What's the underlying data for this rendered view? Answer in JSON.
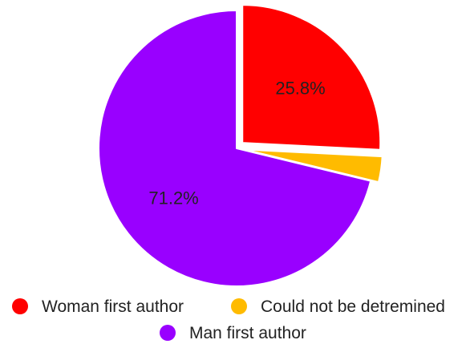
{
  "chart_data": {
    "type": "pie",
    "slices": [
      {
        "name": "Woman first author",
        "value": 25.8,
        "label": "25.8%",
        "color": "#ff0000",
        "exploded": true
      },
      {
        "name": "Could not be detremined",
        "value": 3.0,
        "label": "",
        "color": "#ffbb00",
        "exploded": true
      },
      {
        "name": "Man first author",
        "value": 71.2,
        "label": "71.2%",
        "color": "#9900ff",
        "exploded": false
      }
    ],
    "start_angle": "12 o'clock",
    "direction": "clockwise",
    "legend": {
      "placement": "bottom",
      "entries": [
        "Woman first author",
        "Could not be detremined",
        "Man first author"
      ]
    }
  }
}
